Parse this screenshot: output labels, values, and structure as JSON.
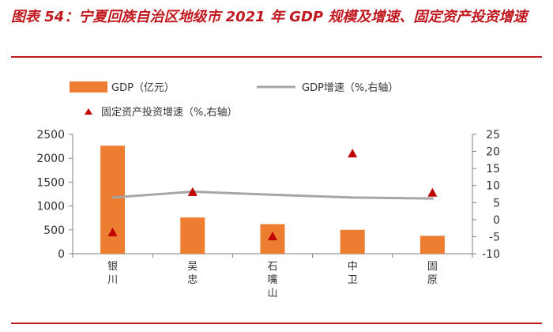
{
  "title": "图表 54：宁夏回族自治区地级市 2021 年 GDP 规模及增速、固定资产投资增速",
  "colors": {
    "title": "#c0191f",
    "bar": "#ed7d31",
    "line": "#a6a6a6",
    "triangle": "#c00000",
    "axis": "#7f7f7f"
  },
  "chart_data": {
    "type": "bar",
    "categories": [
      "银川",
      "吴忠",
      "石嘴山",
      "中卫",
      "固原"
    ],
    "series": [
      {
        "name": "GDP（亿元）",
        "type": "bar",
        "axis": "left",
        "values": [
          2263,
          759,
          620,
          501,
          376
        ]
      },
      {
        "name": "GDP增速（%,右轴）",
        "type": "line",
        "axis": "right",
        "values": [
          6.5,
          8.2,
          7.3,
          6.5,
          6.2
        ]
      },
      {
        "name": "固定资产投资增速（%,右轴）",
        "type": "scatter",
        "marker": "triangle",
        "axis": "right",
        "values": [
          -3.7,
          8.1,
          -4.9,
          19.4,
          7.9
        ]
      }
    ],
    "left_axis": {
      "ylim": [
        0,
        2500
      ],
      "ticks": [
        "0",
        "500",
        "1000",
        "1500",
        "2000",
        "2500"
      ]
    },
    "right_axis": {
      "ylim": [
        -10,
        25
      ],
      "ticks": [
        "-10",
        "-5",
        "0",
        "5",
        "10",
        "15",
        "20",
        "25"
      ]
    },
    "legend": "top",
    "grid": false
  }
}
